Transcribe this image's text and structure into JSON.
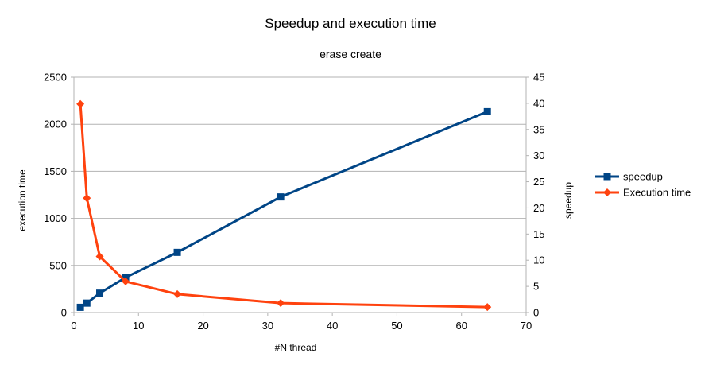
{
  "chart_data": {
    "type": "line",
    "title": "Speedup and execution time",
    "subtitle": "erase create",
    "xlabel": "#N thread",
    "ylabel_left": "execution time",
    "ylabel_right": "speedup",
    "xlim": [
      0,
      70
    ],
    "ylim_left": [
      0,
      2500
    ],
    "ylim_right": [
      0,
      45
    ],
    "x_ticks": [
      0,
      10,
      20,
      30,
      40,
      50,
      60,
      70
    ],
    "y_ticks_left": [
      0,
      500,
      1000,
      1500,
      2000,
      2500
    ],
    "y_ticks_right": [
      0,
      5,
      10,
      15,
      20,
      25,
      30,
      35,
      40,
      45
    ],
    "grid": "horizontal",
    "legend_position": "right",
    "series": [
      {
        "name": "speedup",
        "axis": "right",
        "color": "#004586",
        "marker": "square",
        "x": [
          1,
          2,
          4,
          8,
          16,
          32,
          64
        ],
        "values": [
          1,
          1.8,
          3.7,
          6.7,
          11.5,
          22.1,
          38.4
        ]
      },
      {
        "name": "Execution time",
        "axis": "left",
        "color": "#ff420e",
        "marker": "diamond",
        "x": [
          1,
          2,
          4,
          8,
          16,
          32,
          64
        ],
        "values": [
          2215,
          1215,
          595,
          330,
          195,
          100,
          58
        ]
      }
    ]
  }
}
